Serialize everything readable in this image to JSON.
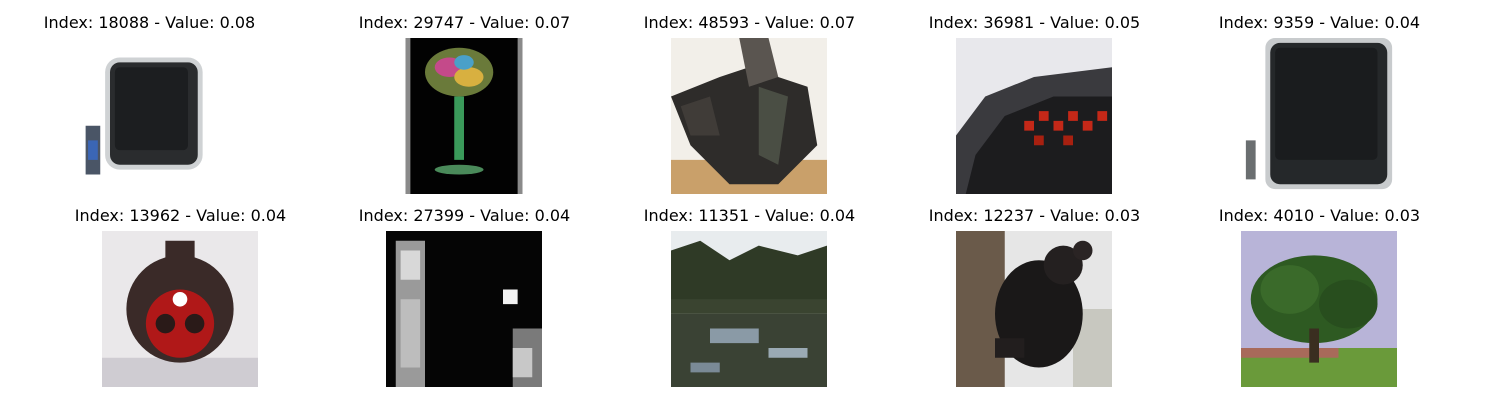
{
  "grid": {
    "cells": [
      {
        "title": "Index: 18088 - Value: 0.08",
        "image": "crt-television-with-remote"
      },
      {
        "title": "Index: 29747 - Value: 0.07",
        "image": "colorful-glass-on-black"
      },
      {
        "title": "Index: 48593 - Value: 0.07",
        "image": "dark-object-closeup"
      },
      {
        "title": "Index: 36981 - Value: 0.05",
        "image": "digital-alarm-clock"
      },
      {
        "title": "Index: 9359 - Value: 0.04",
        "image": "crt-television-with-remote"
      },
      {
        "title": "Index: 13962 - Value: 0.04",
        "image": "ladybug-round-object"
      },
      {
        "title": "Index: 27399 - Value: 0.04",
        "image": "grayscale-figures-dark"
      },
      {
        "title": "Index: 11351 - Value: 0.04",
        "image": "forest-lake-reflection"
      },
      {
        "title": "Index: 12237 - Value: 0.03",
        "image": "black-bear-cub-on-tree"
      },
      {
        "title": "Index: 4010 - Value: 0.03",
        "image": "tree-in-field"
      }
    ]
  }
}
